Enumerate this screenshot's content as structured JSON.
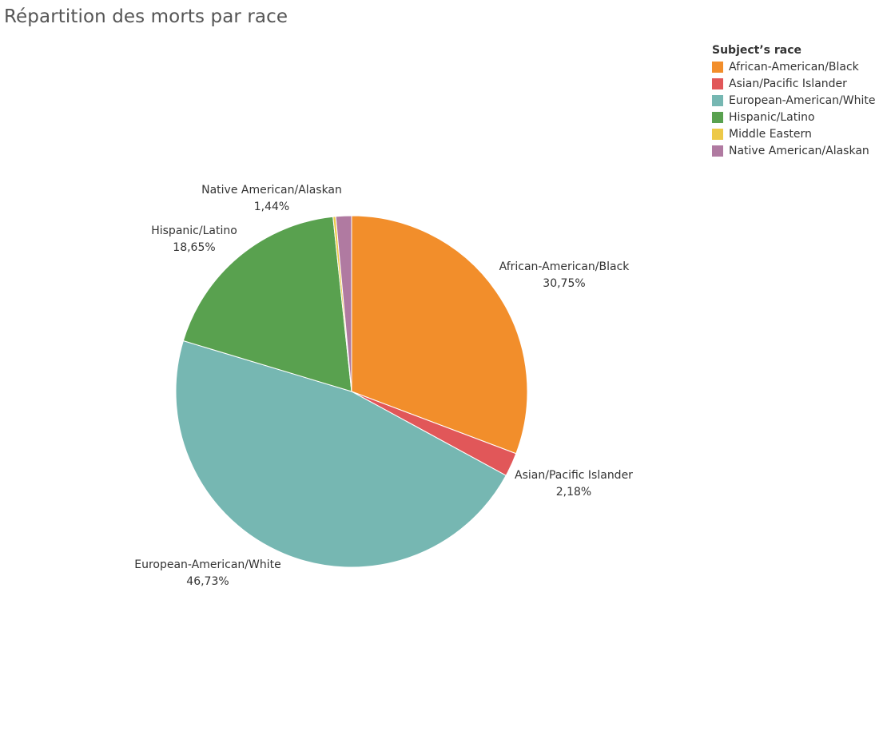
{
  "chart_data": {
    "type": "pie",
    "title": "Répartition des morts par race",
    "legend_title": "Subject’s race",
    "legend_position": "top-right",
    "slices": [
      {
        "name": "African-American/Black",
        "value": 30.75,
        "label": "30,75%",
        "color": "#F28E2B",
        "show_label": true
      },
      {
        "name": "Asian/Pacific Islander",
        "value": 2.18,
        "label": "2,18%",
        "color": "#E15759",
        "show_label": true
      },
      {
        "name": "European-American/White",
        "value": 46.73,
        "label": "46,73%",
        "color": "#76B7B2",
        "show_label": true
      },
      {
        "name": "Hispanic/Latino",
        "value": 18.65,
        "label": "18,65%",
        "color": "#59A14F",
        "show_label": true
      },
      {
        "name": "Middle Eastern",
        "value": 0.25,
        "label": "",
        "color": "#EDC948",
        "show_label": false
      },
      {
        "name": "Native American/Alaskan",
        "value": 1.44,
        "label": "1,44%",
        "color": "#B07AA1",
        "show_label": true
      }
    ]
  }
}
